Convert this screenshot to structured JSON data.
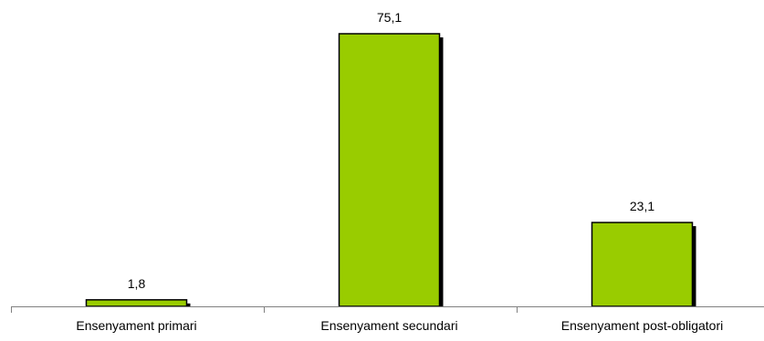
{
  "chart_data": {
    "type": "bar",
    "categories": [
      "Ensenyament primari",
      "Ensenyament secundari",
      "Ensenyament post-obligatori"
    ],
    "values": [
      1.8,
      75.1,
      23.1
    ],
    "value_labels": [
      "1,8",
      "75,1",
      "23,1"
    ],
    "ylim": [
      0,
      78
    ],
    "grid": false,
    "legend": "none",
    "bar_color": "#99cc00",
    "bar_outline_color": "#000000",
    "bar_shadow_color": "#000000",
    "axis_color": "#808080"
  }
}
